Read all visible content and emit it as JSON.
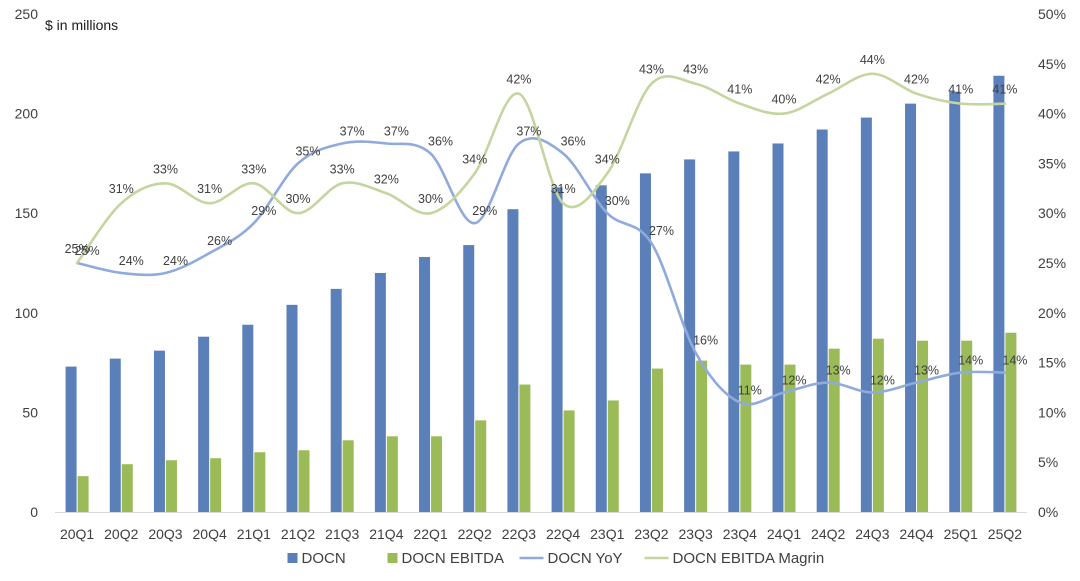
{
  "chart_data": {
    "type": "bar",
    "y_unit_label": "$ in millions",
    "categories": [
      "20Q1",
      "20Q2",
      "20Q3",
      "20Q4",
      "21Q1",
      "21Q2",
      "21Q3",
      "21Q4",
      "22Q1",
      "22Q2",
      "22Q3",
      "22Q4",
      "23Q1",
      "23Q2",
      "23Q3",
      "23Q4",
      "24Q1",
      "24Q2",
      "24Q3",
      "24Q4",
      "25Q1",
      "25Q2"
    ],
    "ylim_left": [
      0,
      250
    ],
    "yticks_left": [
      "0",
      "50",
      "100",
      "150",
      "200",
      "250"
    ],
    "ylim_right": [
      0,
      50
    ],
    "yticks_right": [
      "0%",
      "5%",
      "10%",
      "15%",
      "20%",
      "25%",
      "30%",
      "35%",
      "40%",
      "45%",
      "50%"
    ],
    "series": [
      {
        "name": "DOCN",
        "kind": "bar",
        "axis": "left",
        "color": "#5b7fb9",
        "values": [
          73,
          77,
          81,
          88,
          94,
          104,
          112,
          120,
          128,
          134,
          152,
          163,
          164,
          170,
          177,
          181,
          185,
          192,
          198,
          205,
          211,
          219
        ]
      },
      {
        "name": "DOCN EBITDA",
        "kind": "bar",
        "axis": "left",
        "color": "#9bbb59",
        "values": [
          18,
          24,
          26,
          27,
          30,
          31,
          36,
          38,
          38,
          46,
          64,
          51,
          56,
          72,
          76,
          74,
          74,
          82,
          87,
          86,
          86,
          90
        ]
      },
      {
        "name": "DOCN YoY",
        "kind": "line",
        "axis": "right",
        "color": "#8faadc",
        "values": [
          25,
          24,
          24,
          26,
          29,
          35,
          37,
          37,
          36,
          29,
          37,
          36,
          30,
          27,
          16,
          11,
          12,
          13,
          12,
          13,
          14,
          14
        ],
        "labels": [
          "25%",
          "24%",
          "24%",
          "26%",
          "29%",
          "35%",
          "37%",
          "37%",
          "36%",
          "29%",
          "37%",
          "36%",
          "30%",
          "27%",
          "16%",
          "11%",
          "12%",
          "13%",
          "12%",
          "13%",
          "14%",
          "14%"
        ]
      },
      {
        "name": "DOCN EBITDA Magrin",
        "kind": "line",
        "axis": "right",
        "color": "#c5d5a0",
        "values": [
          25,
          31,
          33,
          31,
          33,
          30,
          33,
          32,
          30,
          34,
          42,
          31,
          34,
          43,
          43,
          41,
          40,
          42,
          44,
          42,
          41,
          41
        ],
        "labels": [
          "25%",
          "31%",
          "33%",
          "31%",
          "33%",
          "30%",
          "33%",
          "32%",
          "30%",
          "34%",
          "42%",
          "31%",
          "34%",
          "43%",
          "43%",
          "41%",
          "40%",
          "42%",
          "44%",
          "42%",
          "41%",
          "41%"
        ]
      }
    ],
    "legend": {
      "position": "bottom"
    }
  }
}
